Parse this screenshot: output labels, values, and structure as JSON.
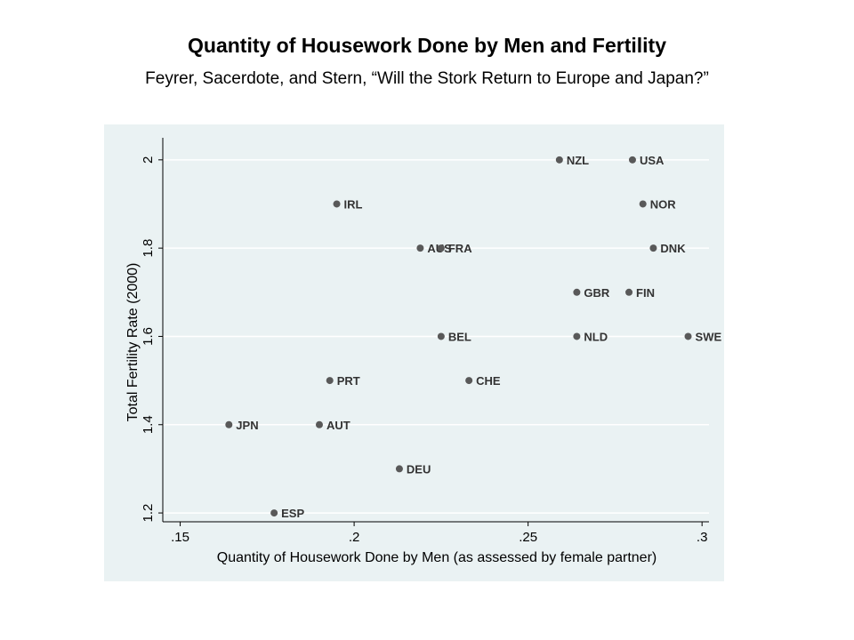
{
  "title": "Quantity of Housework Done by Men and Fertility",
  "subtitle": "Feyrer, Sacerdote, and Stern, “Will the Stork Return to Europe and Japan?”",
  "colors": {
    "plot_background": "#eaf2f3",
    "marker": "#595959",
    "gridline": "#ffffff",
    "axis": "#000000"
  },
  "chart_data": {
    "type": "scatter",
    "xlabel": "Quantity of Housework Done by Men (as assessed by female partner)",
    "ylabel": "Total Fertility Rate (2000)",
    "xlim": [
      0.145,
      0.302
    ],
    "ylim": [
      1.18,
      2.05
    ],
    "grid": true,
    "x_ticks": [
      0.15,
      0.2,
      0.25,
      0.3
    ],
    "x_tick_labels": [
      ".15",
      ".2",
      ".25",
      ".3"
    ],
    "y_ticks": [
      1.2,
      1.4,
      1.6,
      1.8,
      2.0
    ],
    "y_tick_labels": [
      "1.2",
      "1.4",
      "1.6",
      "1.8",
      "2"
    ],
    "points": [
      {
        "label": "NZL",
        "x": 0.259,
        "y": 2.0
      },
      {
        "label": "USA",
        "x": 0.28,
        "y": 2.0
      },
      {
        "label": "IRL",
        "x": 0.195,
        "y": 1.9
      },
      {
        "label": "NOR",
        "x": 0.283,
        "y": 1.9
      },
      {
        "label": "AUS",
        "x": 0.219,
        "y": 1.8
      },
      {
        "label": "FRA",
        "x": 0.225,
        "y": 1.8
      },
      {
        "label": "DNK",
        "x": 0.286,
        "y": 1.8
      },
      {
        "label": "GBR",
        "x": 0.264,
        "y": 1.7
      },
      {
        "label": "FIN",
        "x": 0.279,
        "y": 1.7
      },
      {
        "label": "BEL",
        "x": 0.225,
        "y": 1.6
      },
      {
        "label": "NLD",
        "x": 0.264,
        "y": 1.6
      },
      {
        "label": "SWE",
        "x": 0.296,
        "y": 1.6
      },
      {
        "label": "PRT",
        "x": 0.193,
        "y": 1.5
      },
      {
        "label": "CHE",
        "x": 0.233,
        "y": 1.5
      },
      {
        "label": "JPN",
        "x": 0.164,
        "y": 1.4
      },
      {
        "label": "AUT",
        "x": 0.19,
        "y": 1.4
      },
      {
        "label": "DEU",
        "x": 0.213,
        "y": 1.3
      },
      {
        "label": "ESP",
        "x": 0.177,
        "y": 1.2
      }
    ]
  }
}
